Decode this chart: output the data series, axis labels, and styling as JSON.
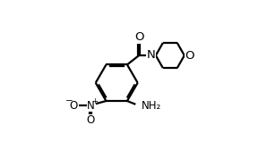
{
  "background_color": "#ffffff",
  "line_color": "#000000",
  "line_width": 1.6,
  "font_size": 8.5,
  "xlim": [
    -1.5,
    9.5
  ],
  "ylim": [
    -0.5,
    6.8
  ]
}
